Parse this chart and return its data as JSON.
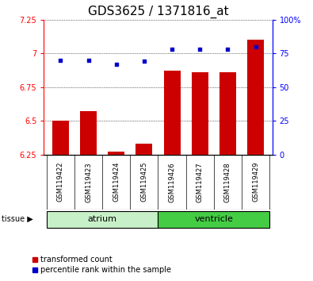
{
  "title": "GDS3625 / 1371816_at",
  "samples": [
    "GSM119422",
    "GSM119423",
    "GSM119424",
    "GSM119425",
    "GSM119426",
    "GSM119427",
    "GSM119428",
    "GSM119429"
  ],
  "transformed_count": [
    6.5,
    6.57,
    6.27,
    6.33,
    6.87,
    6.86,
    6.86,
    7.1
  ],
  "percentile_rank": [
    70,
    70,
    67,
    69,
    78,
    78,
    78,
    80
  ],
  "ylim_left": [
    6.25,
    7.25
  ],
  "ylim_right": [
    0,
    100
  ],
  "yticks_left": [
    6.25,
    6.5,
    6.75,
    7.0,
    7.25
  ],
  "ytick_labels_left": [
    "6.25",
    "6.5",
    "6.75",
    "7",
    "7.25"
  ],
  "yticks_right": [
    0,
    25,
    50,
    75,
    100
  ],
  "ytick_labels_right": [
    "0",
    "25",
    "50",
    "75",
    "100%"
  ],
  "groups": [
    {
      "name": "atrium",
      "start": 0,
      "end": 4,
      "color_light": "#c8f0c8",
      "color_dark": "#90ee90"
    },
    {
      "name": "ventricle",
      "start": 4,
      "end": 8,
      "color_light": "#44dd44",
      "color_dark": "#22bb22"
    }
  ],
  "bar_color": "#cc0000",
  "dot_color": "#0000cc",
  "bar_width": 0.6,
  "background_color": "#ffffff",
  "grid_color": "#000000",
  "title_fontsize": 11,
  "tick_fontsize": 7,
  "sample_fontsize": 6,
  "label_fontsize": 8,
  "legend_fontsize": 8,
  "base_value": 6.25
}
